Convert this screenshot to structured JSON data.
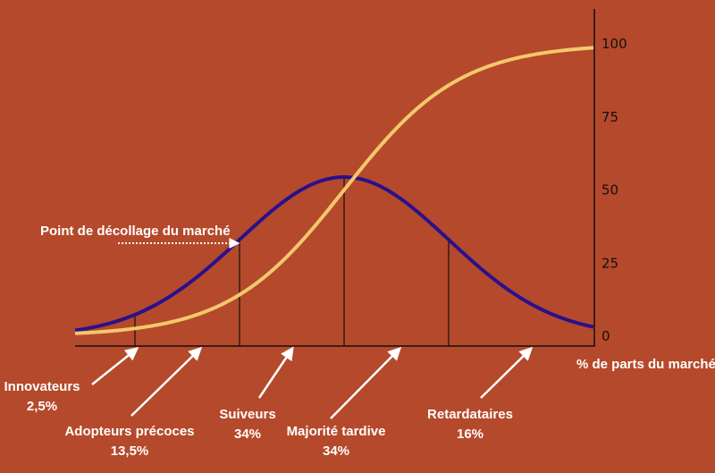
{
  "chart_data": {
    "type": "line",
    "title": "",
    "xlabel": "% de parts du marché",
    "ylabel": "",
    "ylim": [
      0,
      100
    ],
    "y_ticks": [
      "0",
      "25",
      "50",
      "75",
      "100"
    ],
    "grid": false,
    "series": [
      {
        "kind": "bell",
        "color": "#2a108c"
      },
      {
        "kind": "cumulative",
        "color": "#f2c86b"
      }
    ],
    "annotation": "Point de décollage du marché",
    "segments": [
      {
        "name": "Innovateurs",
        "share": "2,5%",
        "value": 2.5
      },
      {
        "name": "Adopteurs précoces",
        "share": "13,5%",
        "value": 13.5
      },
      {
        "name": "Suiveurs",
        "share": "34%",
        "value": 34
      },
      {
        "name": "Majorité tardive",
        "share": "34%",
        "value": 34
      },
      {
        "name": "Retardataires",
        "share": "16%",
        "value": 16
      }
    ]
  }
}
